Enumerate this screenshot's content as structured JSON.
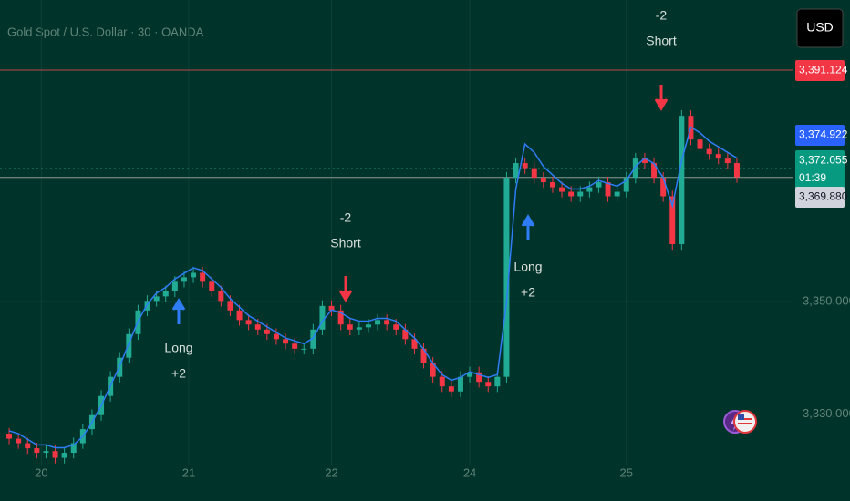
{
  "chart_data": {
    "type": "candlestick",
    "title": "Gold Spot / U.S. Dollar · 30 · OANDA",
    "ylim": [
      3321,
      3403.6
    ],
    "yticks": [
      {
        "value": 3350,
        "label": "3,350.000"
      },
      {
        "value": 3330,
        "label": "3,330.000"
      }
    ],
    "xtick_labels": [
      "20",
      "21",
      "22",
      "24",
      "25"
    ],
    "up_color": "#22ab94",
    "down_color": "#f23645",
    "ma_color": "#2e7df7",
    "open": [
      3326.5,
      3325.6,
      3324.8,
      3323.9,
      3323.1,
      3323.4,
      3322.2,
      3323.1,
      3324.8,
      3327.3,
      3329.8,
      3333.2,
      3336.6,
      3340.0,
      3344.2,
      3348.4,
      3350.1,
      3350.9,
      3351.8,
      3353.5,
      3354.3,
      3355.1,
      3353.5,
      3351.8,
      3350.1,
      3348.4,
      3346.7,
      3345.9,
      3345.0,
      3344.2,
      3343.3,
      3342.5,
      3341.6,
      3341.6,
      3345.0,
      3349.2,
      3348.4,
      3345.9,
      3345.0,
      3345.4,
      3345.9,
      3346.7,
      3345.9,
      3345.0,
      3343.3,
      3341.6,
      3339.1,
      3336.6,
      3334.9,
      3334.0,
      3336.6,
      3337.4,
      3335.7,
      3334.9,
      3336.6,
      3372.0,
      3374.6,
      3373.7,
      3372.0,
      3371.2,
      3370.3,
      3369.5,
      3368.7,
      3369.5,
      3370.3,
      3371.2,
      3368.7,
      3369.5,
      3372.0,
      3375.4,
      3374.6,
      3372.0,
      3368.7,
      3360.2,
      3383.0,
      3378.8,
      3377.1,
      3376.2,
      3375.4,
      3374.6
    ],
    "high": [
      3327.5,
      3326.6,
      3325.8,
      3324.9,
      3324.4,
      3324.4,
      3324.1,
      3325.8,
      3328.3,
      3330.8,
      3334.2,
      3337.6,
      3341.0,
      3345.2,
      3349.4,
      3351.1,
      3351.9,
      3352.8,
      3354.5,
      3355.3,
      3356.1,
      3356.1,
      3354.5,
      3352.8,
      3351.1,
      3349.4,
      3347.7,
      3346.9,
      3346.0,
      3345.2,
      3344.3,
      3343.5,
      3342.6,
      3346.0,
      3350.2,
      3350.2,
      3349.4,
      3346.9,
      3346.4,
      3346.9,
      3347.7,
      3347.7,
      3346.9,
      3346.0,
      3344.3,
      3342.6,
      3340.1,
      3337.6,
      3335.9,
      3337.6,
      3338.4,
      3338.4,
      3336.7,
      3337.6,
      3373.0,
      3375.6,
      3375.6,
      3374.7,
      3373.0,
      3372.2,
      3371.3,
      3370.5,
      3370.5,
      3371.3,
      3372.2,
      3372.2,
      3370.5,
      3373.0,
      3376.4,
      3376.4,
      3375.6,
      3373.0,
      3369.7,
      3384.0,
      3384.0,
      3379.8,
      3378.1,
      3377.2,
      3376.4,
      3375.6
    ],
    "low": [
      3324.6,
      3323.8,
      3322.9,
      3322.1,
      3322.1,
      3321.2,
      3321.2,
      3322.1,
      3323.8,
      3326.3,
      3328.8,
      3332.2,
      3335.6,
      3339.0,
      3343.2,
      3347.4,
      3349.1,
      3349.9,
      3350.8,
      3352.5,
      3353.3,
      3352.5,
      3350.8,
      3349.1,
      3347.4,
      3345.7,
      3344.9,
      3344.0,
      3343.2,
      3342.3,
      3341.5,
      3340.6,
      3340.6,
      3340.6,
      3344.0,
      3347.4,
      3344.9,
      3344.0,
      3344.0,
      3344.4,
      3344.9,
      3344.9,
      3344.0,
      3342.3,
      3340.6,
      3338.1,
      3335.6,
      3333.9,
      3333.0,
      3333.0,
      3335.6,
      3334.7,
      3333.9,
      3333.9,
      3335.6,
      3371.0,
      3372.7,
      3371.0,
      3370.2,
      3369.3,
      3368.5,
      3367.7,
      3367.7,
      3368.5,
      3369.3,
      3367.7,
      3367.7,
      3368.5,
      3371.0,
      3373.6,
      3371.0,
      3367.7,
      3359.2,
      3359.2,
      3377.8,
      3376.1,
      3375.2,
      3374.4,
      3373.6,
      3371.1
    ],
    "close": [
      3325.6,
      3324.8,
      3323.9,
      3323.1,
      3323.4,
      3322.2,
      3323.1,
      3324.8,
      3327.3,
      3329.8,
      3333.2,
      3336.6,
      3340.0,
      3344.2,
      3348.4,
      3350.1,
      3350.9,
      3351.8,
      3353.5,
      3354.3,
      3355.1,
      3353.5,
      3351.8,
      3350.1,
      3348.4,
      3346.7,
      3345.9,
      3345.0,
      3344.2,
      3343.3,
      3342.5,
      3341.6,
      3341.6,
      3345.0,
      3349.2,
      3348.4,
      3345.9,
      3345.0,
      3345.4,
      3345.9,
      3346.7,
      3345.9,
      3345.0,
      3343.3,
      3341.6,
      3339.1,
      3336.6,
      3334.9,
      3334.0,
      3336.6,
      3337.4,
      3335.7,
      3334.9,
      3336.6,
      3372.0,
      3374.6,
      3373.7,
      3372.0,
      3371.2,
      3370.3,
      3369.5,
      3368.7,
      3369.5,
      3370.3,
      3371.2,
      3368.7,
      3369.5,
      3372.0,
      3375.4,
      3374.6,
      3372.0,
      3368.7,
      3360.2,
      3383.0,
      3378.8,
      3377.1,
      3376.2,
      3375.4,
      3374.6,
      3372.1
    ],
    "ma": [
      3327,
      3326.5,
      3325.5,
      3324.5,
      3324.5,
      3324,
      3324,
      3324.5,
      3326,
      3328.5,
      3331.5,
      3335,
      3338.5,
      3342.5,
      3346.5,
      3349.5,
      3351.5,
      3352.5,
      3354,
      3355,
      3356,
      3355.5,
      3354,
      3352.5,
      3350.5,
      3349,
      3347.5,
      3346.5,
      3345.5,
      3344.5,
      3343.5,
      3343,
      3342.5,
      3343.5,
      3346.5,
      3348.5,
      3348,
      3347,
      3346.5,
      3346.5,
      3347,
      3347,
      3346.5,
      3345,
      3343.5,
      3341.5,
      3339,
      3337,
      3336,
      3336.5,
      3337.5,
      3337,
      3336.5,
      3337,
      3350,
      3370,
      3378,
      3376.5,
      3374,
      3372.5,
      3371,
      3370,
      3370,
      3370.5,
      3371.5,
      3371,
      3370.5,
      3371.5,
      3374,
      3375.5,
      3374.5,
      3372,
      3367,
      3375,
      3381,
      3380,
      3378.5,
      3377.5,
      3376.5,
      3375.5
    ],
    "price_tags": [
      {
        "value": 3391.124,
        "label": "3,391.124",
        "color": "#f23645"
      },
      {
        "value": 3374.922,
        "label": "3,374.922",
        "color": "#2962ff"
      },
      {
        "value": 3372.055,
        "label": "3,372.055",
        "countdown": "01:39",
        "color": "#089981"
      },
      {
        "value": 3369.88,
        "label": "3,369.880",
        "color": "#d1d4dc"
      }
    ],
    "annotations": [
      {
        "line1": "-2",
        "line2": "Short"
      },
      {
        "line1": "-2",
        "line2": "Short"
      },
      {
        "line1": "Long",
        "line2": "+2"
      },
      {
        "line1": "Long",
        "line2": "+2"
      }
    ],
    "currency": "USD"
  }
}
